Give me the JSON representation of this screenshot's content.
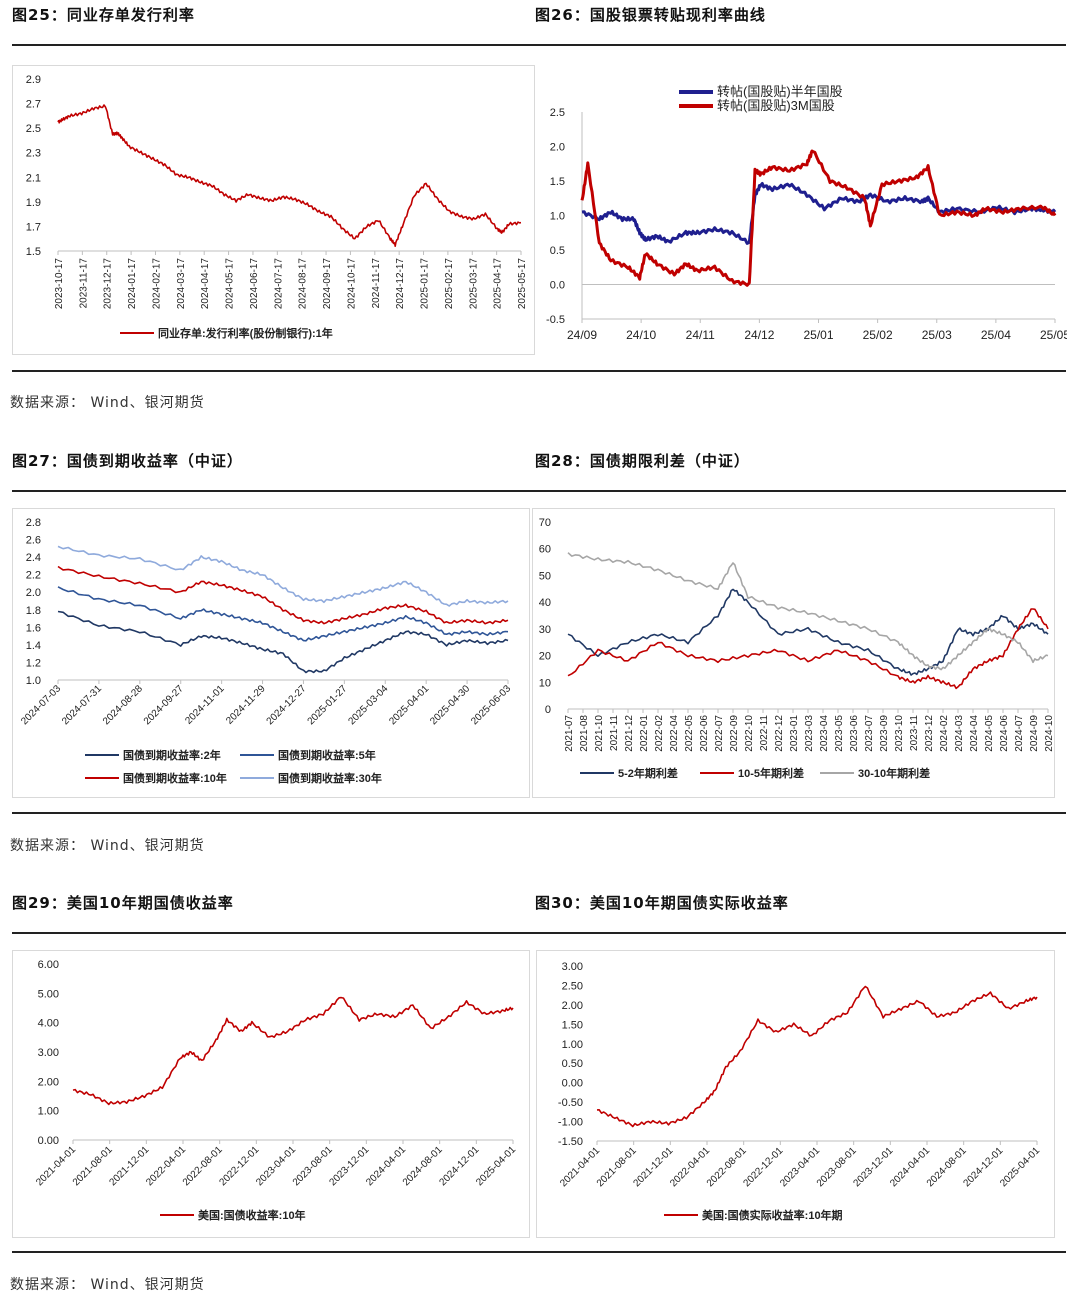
{
  "source_label": "数据来源： Wind、银河期货",
  "charts": [
    {
      "id": "fig25",
      "figure_title": "图25：同业存单发行利率",
      "chart_data": {
        "type": "line",
        "title": "同业存单发行利率",
        "categories": [
          "2023-10-17",
          "2023-11-17",
          "2023-12-17",
          "2024-01-17",
          "2024-02-17",
          "2024-03-17",
          "2024-04-17",
          "2024-05-17",
          "2024-06-17",
          "2024-07-17",
          "2024-08-17",
          "2024-09-17",
          "2024-10-17",
          "2024-11-17",
          "2024-12-17",
          "2025-01-17",
          "2025-02-17",
          "2025-03-17",
          "2025-04-17",
          "2025-05-17"
        ],
        "y_ticks": [
          "2.9",
          "2.7",
          "2.5",
          "2.3",
          "2.1",
          "1.9",
          "1.7",
          "1.5"
        ],
        "ylim": [
          1.5,
          2.9
        ],
        "series": [
          {
            "name": "同业存单:发行利率(股份制银行):1年",
            "color": "#C00000",
            "x": [
              0,
              0.2,
              0.5,
              1,
              1.5,
              2,
              2.3,
              2.5,
              2.7,
              3,
              3.5,
              4,
              4.5,
              5,
              5.5,
              6,
              6.5,
              7,
              7.5,
              8,
              8.5,
              9,
              9.5,
              10,
              10.5,
              11,
              11.5,
              12,
              12.5,
              13,
              13.5,
              14,
              14.2,
              14.5,
              15,
              15.5,
              16,
              16.5,
              17,
              17.5,
              18,
              18.5,
              18.7,
              19,
              19.5
            ],
            "values": [
              2.55,
              2.57,
              2.6,
              2.62,
              2.66,
              2.68,
              2.45,
              2.46,
              2.42,
              2.35,
              2.3,
              2.25,
              2.2,
              2.12,
              2.1,
              2.06,
              2.03,
              1.96,
              1.91,
              1.96,
              1.93,
              1.91,
              1.94,
              1.92,
              1.88,
              1.82,
              1.78,
              1.68,
              1.6,
              1.7,
              1.75,
              1.6,
              1.55,
              1.7,
              1.95,
              2.05,
              1.92,
              1.82,
              1.78,
              1.76,
              1.8,
              1.68,
              1.65,
              1.72,
              1.73
            ]
          }
        ]
      }
    },
    {
      "id": "fig26",
      "figure_title": "图26：国股银票转贴现利率曲线",
      "chart_data": {
        "type": "line",
        "title": "国股银票转贴现利率曲线",
        "categories": [
          "24/09",
          "24/10",
          "24/11",
          "24/12",
          "25/01",
          "25/02",
          "25/03",
          "25/04",
          "25/05"
        ],
        "y_ticks": [
          "2.5",
          "2.0",
          "1.5",
          "1.0",
          "0.5",
          "0.0",
          "-0.5"
        ],
        "ylim": [
          -0.5,
          2.5
        ],
        "series": [
          {
            "name": "转帖(国股贴)半年国股",
            "color": "#1F1F8F",
            "x": [
              0,
              0.3,
              0.5,
              0.7,
              0.9,
              1,
              1.1,
              1.3,
              1.5,
              1.8,
              2,
              2.3,
              2.6,
              2.9,
              3,
              3.1,
              3.3,
              3.6,
              3.9,
              4.2,
              4.5,
              4.8,
              5,
              5.3,
              5.6,
              5.9,
              6,
              6.2,
              6.5,
              6.9,
              7.2,
              7.5,
              7.8,
              8,
              8.2
            ],
            "values": [
              1.05,
              0.95,
              1.05,
              0.95,
              0.95,
              0.75,
              0.65,
              0.7,
              0.62,
              0.75,
              0.75,
              0.8,
              0.75,
              0.6,
              1.3,
              1.45,
              1.38,
              1.45,
              1.3,
              1.1,
              1.25,
              1.2,
              1.3,
              1.2,
              1.25,
              1.2,
              1.25,
              1.05,
              1.1,
              1.05,
              1.12,
              1.05,
              1.1,
              1.08,
              1.05
            ]
          },
          {
            "name": "转帖(国股贴)3M国股",
            "color": "#C00000",
            "x": [
              0,
              0.1,
              0.3,
              0.5,
              0.8,
              1,
              1.1,
              1.3,
              1.6,
              1.8,
              2,
              2.3,
              2.6,
              2.9,
              3,
              3.1,
              3.3,
              3.6,
              3.9,
              4,
              4.3,
              4.6,
              4.9,
              5,
              5.2,
              5.5,
              5.8,
              6,
              6.2,
              6.5,
              6.8,
              7,
              7.3,
              7.6,
              8,
              8.2
            ],
            "values": [
              1.2,
              1.75,
              0.6,
              0.35,
              0.25,
              0.1,
              0.45,
              0.3,
              0.15,
              0.3,
              0.2,
              0.25,
              0.05,
              0.0,
              1.65,
              1.6,
              1.7,
              1.65,
              1.75,
              1.95,
              1.5,
              1.4,
              1.25,
              0.85,
              1.45,
              1.5,
              1.55,
              1.7,
              1.0,
              1.05,
              1.0,
              1.1,
              1.05,
              1.1,
              1.12,
              1.0
            ]
          }
        ]
      }
    },
    {
      "id": "fig27",
      "figure_title": "图27：国债到期收益率（中证）",
      "chart_data": {
        "type": "line",
        "title": "国债到期收益率（中证）",
        "categories": [
          "2024-07-03",
          "2024-07-31",
          "2024-08-28",
          "2024-09-27",
          "2024-11-01",
          "2024-11-29",
          "2024-12-27",
          "2025-01-27",
          "2025-03-04",
          "2025-04-01",
          "2025-04-30",
          "2025-06-03"
        ],
        "y_ticks": [
          "2.8",
          "2.6",
          "2.4",
          "2.2",
          "2.0",
          "1.8",
          "1.6",
          "1.4",
          "1.2",
          "1.0"
        ],
        "ylim": [
          1.0,
          2.8
        ],
        "series": [
          {
            "name": "国债到期收益率:2年",
            "color": "#203864",
            "x": [
              0,
              1,
              2,
              3,
              3.5,
              4,
              4.5,
              5,
              5.5,
              6,
              6.5,
              7,
              7.5,
              8,
              8.5,
              9,
              9.5,
              10,
              10.5,
              11
            ],
            "values": [
              1.78,
              1.62,
              1.55,
              1.4,
              1.5,
              1.48,
              1.42,
              1.35,
              1.3,
              1.1,
              1.1,
              1.25,
              1.35,
              1.45,
              1.55,
              1.52,
              1.4,
              1.45,
              1.42,
              1.45
            ]
          },
          {
            "name": "国债到期收益率:5年",
            "color": "#2F5597",
            "x": [
              0,
              1,
              2,
              3,
              3.5,
              4,
              4.5,
              5,
              5.5,
              6,
              6.5,
              7,
              7.5,
              8,
              8.5,
              9,
              9.5,
              10,
              10.5,
              11
            ],
            "values": [
              2.05,
              1.92,
              1.85,
              1.7,
              1.8,
              1.75,
              1.7,
              1.65,
              1.55,
              1.45,
              1.5,
              1.55,
              1.6,
              1.65,
              1.72,
              1.65,
              1.52,
              1.55,
              1.52,
              1.55
            ]
          },
          {
            "name": "国债到期收益率:10年",
            "color": "#C00000",
            "x": [
              0,
              1,
              2,
              3,
              3.5,
              4,
              4.5,
              5,
              5.5,
              6,
              6.5,
              7,
              7.5,
              8,
              8.5,
              9,
              9.5,
              10,
              10.5,
              11
            ],
            "values": [
              2.28,
              2.18,
              2.1,
              2.0,
              2.12,
              2.08,
              2.02,
              1.95,
              1.8,
              1.68,
              1.65,
              1.7,
              1.75,
              1.82,
              1.85,
              1.78,
              1.65,
              1.68,
              1.65,
              1.68
            ]
          },
          {
            "name": "国债到期收益率:30年",
            "color": "#8FAADC",
            "x": [
              0,
              1,
              2,
              3,
              3.5,
              4,
              4.5,
              5,
              5.5,
              6,
              6.5,
              7,
              7.5,
              8,
              8.5,
              9,
              9.5,
              10,
              10.5,
              11
            ],
            "values": [
              2.52,
              2.42,
              2.38,
              2.25,
              2.4,
              2.35,
              2.25,
              2.2,
              2.05,
              1.92,
              1.9,
              1.95,
              2.0,
              2.05,
              2.12,
              2.0,
              1.85,
              1.9,
              1.88,
              1.9
            ]
          }
        ]
      }
    },
    {
      "id": "fig28",
      "figure_title": "图28：国债期限利差（中证）",
      "chart_data": {
        "type": "line",
        "title": "国债期限利差（中证）",
        "categories": [
          "2021-07",
          "2021-08",
          "2021-10",
          "2021-11",
          "2021-12",
          "2022-01",
          "2022-02",
          "2022-04",
          "2022-05",
          "2022-06",
          "2022-07",
          "2022-09",
          "2022-10",
          "2022-11",
          "2022-12",
          "2023-01",
          "2023-03",
          "2023-04",
          "2023-05",
          "2023-06",
          "2023-07",
          "2023-09",
          "2023-10",
          "2023-11",
          "2023-12",
          "2024-02",
          "2024-03",
          "2024-04",
          "2024-05",
          "2024-06",
          "2024-07",
          "2024-09",
          "2024-10"
        ],
        "y_ticks": [
          "70",
          "60",
          "50",
          "40",
          "30",
          "20",
          "10",
          "0"
        ],
        "ylim": [
          0,
          70
        ],
        "series": [
          {
            "name": "5-2年期利差",
            "color": "#203864",
            "x": [
              0,
              2,
              4,
              6,
              8,
              10,
              11,
              12,
              14,
              16,
              18,
              20,
              22,
              23,
              24,
              25,
              26,
              27,
              28,
              29,
              30,
              31,
              32
            ],
            "values": [
              28,
              20,
              25,
              28,
              25,
              35,
              45,
              40,
              28,
              30,
              25,
              22,
              15,
              13,
              15,
              18,
              30,
              28,
              30,
              35,
              30,
              32,
              28
            ]
          },
          {
            "name": "10-5年期利差",
            "color": "#C00000",
            "x": [
              0,
              2,
              4,
              6,
              8,
              10,
              12,
              14,
              16,
              18,
              20,
              22,
              23,
              24,
              25,
              26,
              27,
              28,
              29,
              30,
              31,
              32
            ],
            "values": [
              12,
              22,
              18,
              25,
              20,
              18,
              20,
              22,
              18,
              22,
              18,
              12,
              10,
              12,
              10,
              8,
              15,
              18,
              20,
              30,
              38,
              30
            ]
          },
          {
            "name": "30-10年期利差",
            "color": "#A6A6A6",
            "x": [
              0,
              2,
              4,
              6,
              8,
              10,
              11,
              12,
              14,
              16,
              18,
              20,
              22,
              23,
              24,
              25,
              26,
              27,
              28,
              29,
              30,
              31,
              32
            ],
            "values": [
              58,
              56,
              55,
              52,
              48,
              45,
              55,
              42,
              38,
              36,
              33,
              30,
              25,
              20,
              16,
              15,
              20,
              25,
              30,
              28,
              25,
              18,
              20
            ]
          }
        ]
      }
    },
    {
      "id": "fig29",
      "figure_title": "图29：美国10年期国债收益率",
      "chart_data": {
        "type": "line",
        "title": "美国10年期国债收益率",
        "categories": [
          "2021-04-01",
          "2021-08-01",
          "2021-12-01",
          "2022-04-01",
          "2022-08-01",
          "2022-12-01",
          "2023-04-01",
          "2023-08-01",
          "2023-12-01",
          "2024-04-01",
          "2024-08-01",
          "2024-12-01",
          "2025-04-01"
        ],
        "y_ticks": [
          "6.00",
          "5.00",
          "4.00",
          "3.00",
          "2.00",
          "1.00",
          "0.00"
        ],
        "ylim": [
          0,
          6
        ],
        "series": [
          {
            "name": "美国:国债收益率:10年",
            "color": "#C00000",
            "x": [
              0,
              0.5,
              1,
              1.5,
              2,
              2.5,
              3,
              3.3,
              3.6,
              4,
              4.3,
              4.7,
              5,
              5.5,
              6,
              6.5,
              7,
              7.5,
              8,
              8.5,
              9,
              9.5,
              10,
              10.5,
              11,
              11.5,
              12,
              12.3
            ],
            "values": [
              1.7,
              1.55,
              1.25,
              1.3,
              1.5,
              1.8,
              2.8,
              3.0,
              2.7,
              3.4,
              4.1,
              3.7,
              4.0,
              3.5,
              3.7,
              4.1,
              4.3,
              4.9,
              4.1,
              4.3,
              4.2,
              4.6,
              3.8,
              4.2,
              4.7,
              4.3,
              4.4,
              4.5
            ]
          }
        ]
      }
    },
    {
      "id": "fig30",
      "figure_title": "图30：美国10年期国债实际收益率",
      "chart_data": {
        "type": "line",
        "title": "美国10年期国债实际收益率",
        "categories": [
          "2021-04-01",
          "2021-08-01",
          "2021-12-01",
          "2022-04-01",
          "2022-08-01",
          "2022-12-01",
          "2023-04-01",
          "2023-08-01",
          "2023-12-01",
          "2024-04-01",
          "2024-08-01",
          "2024-12-01",
          "2025-04-01"
        ],
        "y_ticks": [
          "3.00",
          "2.50",
          "2.00",
          "1.50",
          "1.00",
          "0.50",
          "0.00",
          "-0.50",
          "-1.00",
          "-1.50"
        ],
        "ylim": [
          -1.5,
          3.0
        ],
        "series": [
          {
            "name": "美国:国债实际收益率:10年期",
            "color": "#C00000",
            "x": [
              0,
              0.5,
              1,
              1.5,
              2,
              2.5,
              3,
              3.3,
              3.6,
              4,
              4.5,
              5,
              5.5,
              6,
              6.5,
              7,
              7.5,
              8,
              8.5,
              9,
              9.5,
              10,
              10.5,
              11,
              11.5,
              12,
              12.3
            ],
            "values": [
              -0.7,
              -0.9,
              -1.1,
              -1.0,
              -1.05,
              -0.9,
              -0.5,
              -0.2,
              0.4,
              0.8,
              1.6,
              1.3,
              1.5,
              1.2,
              1.6,
              1.8,
              2.5,
              1.7,
              1.9,
              2.1,
              1.7,
              1.8,
              2.1,
              2.3,
              1.9,
              2.1,
              2.2
            ]
          }
        ]
      }
    }
  ]
}
